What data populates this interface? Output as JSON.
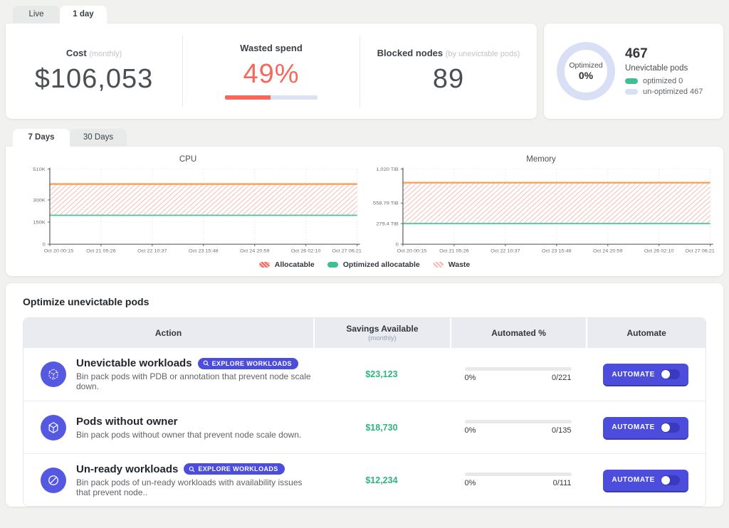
{
  "top_tabs": {
    "live": "Live",
    "one_day": "1 day"
  },
  "stats": {
    "cost": {
      "label": "Cost",
      "suffix": "(monthly)",
      "value": "$106,053"
    },
    "wasted": {
      "label": "Wasted spend",
      "value": "49%",
      "percent": 49
    },
    "blocked": {
      "label": "Blocked nodes",
      "suffix": "(by unevictable pods)",
      "value": "89"
    }
  },
  "optimized_card": {
    "donut_label": "Optimized",
    "donut_value": "0%",
    "count": "467",
    "count_label": "Unevictable pods",
    "legend": [
      {
        "label": "optimized 0",
        "color": "#3fbf94"
      },
      {
        "label": "un-optimized 467",
        "color": "#d9e0f6"
      }
    ]
  },
  "range_tabs": {
    "seven": "7 Days",
    "thirty": "30 Days"
  },
  "chart_data": [
    {
      "type": "line",
      "title": "CPU",
      "x": [
        "Oct 20 00:15",
        "Oct 21 05:26",
        "Oct 22 10:37",
        "Oct 23 15:48",
        "Oct 24 20:59",
        "Oct 26 02:10",
        "Oct 27 06:21"
      ],
      "ylim": [
        0,
        510000
      ],
      "yticks": [
        {
          "v": 0,
          "label": "0"
        },
        {
          "v": 150000,
          "label": "150K"
        },
        {
          "v": 300000,
          "label": "300K"
        },
        {
          "v": 510000,
          "label": "510K"
        }
      ],
      "series": [
        {
          "name": "Allocatable",
          "style": "line",
          "value": 408000,
          "color": "#f4a45c"
        },
        {
          "name": "Optimized allocatable",
          "style": "line",
          "value": 196000,
          "color": "#4cc79e"
        },
        {
          "name": "Waste",
          "style": "hatch-band",
          "between": [
            "Allocatable",
            "Optimized allocatable"
          ],
          "color": "#f4695e"
        }
      ],
      "grid": "dotted"
    },
    {
      "type": "line",
      "title": "Memory",
      "x": [
        "Oct 20 00:15",
        "Oct 21 05:26",
        "Oct 22 10:37",
        "Oct 23 15:48",
        "Oct 24 20:59",
        "Oct 26 02:10",
        "Oct 27 06:21"
      ],
      "ylim": [
        0,
        1020
      ],
      "yticks": [
        {
          "v": 0,
          "label": "0"
        },
        {
          "v": 279.4,
          "label": "279.4 TiB"
        },
        {
          "v": 558.79,
          "label": "558.79 TiB"
        },
        {
          "v": 1020,
          "label": "1,020 TiB"
        }
      ],
      "series": [
        {
          "name": "Allocatable",
          "style": "line",
          "value": 835,
          "color": "#f4a45c"
        },
        {
          "name": "Optimized allocatable",
          "style": "line",
          "value": 279.4,
          "color": "#4cc79e"
        },
        {
          "name": "Waste",
          "style": "hatch-band",
          "between": [
            "Allocatable",
            "Optimized allocatable"
          ],
          "color": "#f4695e"
        }
      ],
      "grid": "dotted"
    }
  ],
  "chart_legend": [
    {
      "label": "Allocatable"
    },
    {
      "label": "Optimized allocatable"
    },
    {
      "label": "Waste"
    }
  ],
  "table": {
    "title": "Optimize unevictable pods",
    "headers": {
      "action": "Action",
      "savings": "Savings Available",
      "savings_sub": "(monthly)",
      "automated": "Automated %",
      "automate": "Automate"
    },
    "rows": [
      {
        "title": "Unevictable workloads",
        "badge": "EXPLORE WORKLOADS",
        "desc": "Bin pack pods with PDB or annotation that prevent node scale down.",
        "savings": "$23,123",
        "automated_percent_label": "0%",
        "automated_percent": 0,
        "automated_ratio": "0/221",
        "button": "AUTOMATE",
        "toggle_on": false
      },
      {
        "title": "Pods without owner",
        "badge": null,
        "desc": "Bin pack pods without owner that prevent node scale down.",
        "savings": "$18,730",
        "automated_percent_label": "0%",
        "automated_percent": 0,
        "automated_ratio": "0/135",
        "button": "AUTOMATE",
        "toggle_on": false
      },
      {
        "title": "Un-ready workloads",
        "badge": "EXPLORE WORKLOADS",
        "desc": "Bin pack pods of un-ready workloads with availability issues that prevent node..",
        "savings": "$12,234",
        "automated_percent_label": "0%",
        "automated_percent": 0,
        "automated_ratio": "0/111",
        "button": "AUTOMATE",
        "toggle_on": false
      }
    ]
  }
}
